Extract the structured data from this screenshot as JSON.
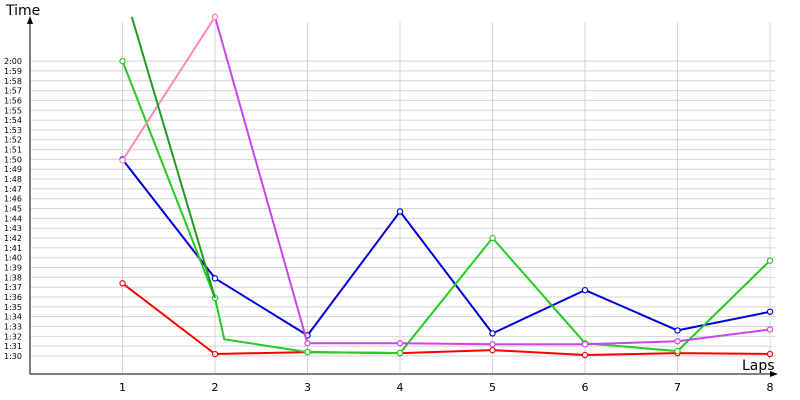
{
  "chart_data": {
    "type": "line",
    "title": "",
    "xlabel": "Laps",
    "ylabel": "Time",
    "x": [
      1,
      2,
      3,
      4,
      5,
      6,
      7,
      8
    ],
    "x_tick_labels": [
      "1",
      "2",
      "3",
      "4",
      "5",
      "6",
      "7",
      "8"
    ],
    "y_tick_labels": [
      "1:30",
      "1:31",
      "1:32",
      "1:33",
      "1:34",
      "1:35",
      "1:36",
      "1:37",
      "1:38",
      "1:39",
      "1:40",
      "1:41",
      "1:42",
      "1:43",
      "1:44",
      "1:45",
      "1:46",
      "1:47",
      "1:48",
      "1:49",
      "1:50",
      "1:51",
      "1:52",
      "1:53",
      "1:54",
      "1:55",
      "1:56",
      "1:57",
      "1:58",
      "1:59",
      "2:00"
    ],
    "y_unit": "seconds",
    "ylim": [
      88,
      122
    ],
    "xlim": [
      0,
      8
    ],
    "grid": true,
    "legend": "none",
    "series": [
      {
        "color": "#ff0000",
        "markers": true,
        "values": [
          97.4,
          90.2,
          90.4,
          90.3,
          90.6,
          90.1,
          90.3,
          90.2
        ]
      },
      {
        "color": "#0000dd",
        "markers": true,
        "values": [
          110.0,
          97.9,
          92.1,
          104.7,
          92.3,
          96.7,
          92.6,
          94.5
        ]
      },
      {
        "color": "#22cc22",
        "markers": true,
        "values": [
          120.0,
          95.9,
          91.7,
          90.4,
          90.3,
          102.0,
          91.3,
          90.5,
          99.7
        ],
        "x": [
          1,
          2,
          2.1,
          3,
          4,
          5,
          6,
          7,
          8
        ]
      },
      {
        "color": "#cc44ee",
        "markers": true,
        "values": [
          124.5,
          91.3,
          91.3,
          91.2,
          91.2,
          91.5,
          92.7
        ],
        "x": [
          2,
          3,
          4,
          5,
          6,
          7,
          8
        ]
      },
      {
        "color": "#ff88bb",
        "markers": true,
        "values": [
          109.9,
          124.5
        ],
        "x": [
          1,
          2
        ]
      },
      {
        "color": "#229922",
        "markers": false,
        "values": [
          124.5,
          95.9
        ],
        "x": [
          1.1,
          2
        ]
      }
    ]
  }
}
